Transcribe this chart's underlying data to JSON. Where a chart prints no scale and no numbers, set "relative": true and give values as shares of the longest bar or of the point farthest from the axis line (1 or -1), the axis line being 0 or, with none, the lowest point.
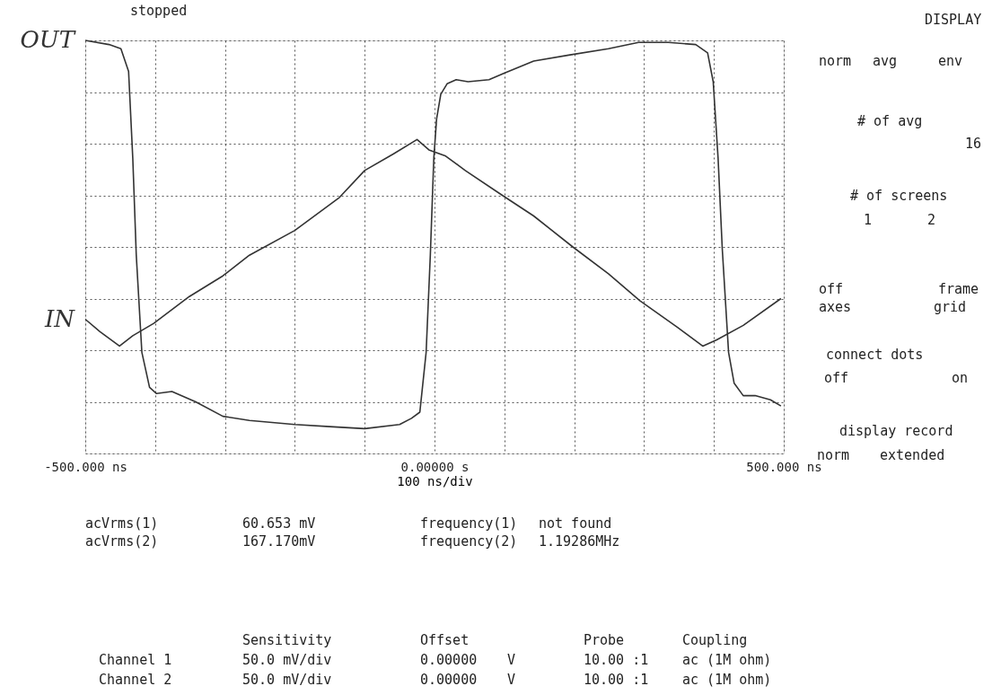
{
  "chart_data": {
    "type": "line",
    "relative": true,
    "xlabel": "100 ns/div",
    "xlim": [
      -500,
      500
    ],
    "xticks": [
      {
        "value": -500,
        "label": "-500.000 ns"
      },
      {
        "value": -400,
        "label": null
      },
      {
        "value": -300,
        "label": null
      },
      {
        "value": -200,
        "label": null
      },
      {
        "value": -100,
        "label": null
      },
      {
        "value": 0,
        "label": "0.00000  s"
      },
      {
        "value": 100,
        "label": null
      },
      {
        "value": 200,
        "label": null
      },
      {
        "value": 300,
        "label": null
      },
      {
        "value": 400,
        "label": null
      },
      {
        "value": 500,
        "label": "500.000 ns"
      }
    ],
    "tick_labels": "x",
    "grid": true,
    "series": [
      {
        "name": "OUT",
        "color": "#333333",
        "x": [
          -500,
          -466,
          -449,
          -438,
          -432,
          -427,
          -419,
          -408,
          -398,
          -376,
          -342,
          -303,
          -265,
          -200,
          -150,
          -100,
          -50,
          -33,
          -21,
          -12,
          -6,
          -1,
          3,
          9,
          18,
          31,
          48,
          78,
          99,
          142,
          194,
          249,
          292,
          335,
          374,
          391,
          399,
          406,
          412,
          421,
          429,
          442,
          459,
          481,
          496
        ],
        "values": [
          1.0,
          0.98,
          0.96,
          0.85,
          0.43,
          -0.04,
          -0.51,
          -0.68,
          -0.71,
          -0.7,
          -0.75,
          -0.82,
          -0.84,
          -0.86,
          -0.87,
          -0.88,
          -0.86,
          -0.83,
          -0.8,
          -0.51,
          -0.04,
          0.43,
          0.62,
          0.74,
          0.79,
          0.81,
          0.8,
          0.81,
          0.84,
          0.9,
          0.93,
          0.96,
          0.99,
          0.99,
          0.98,
          0.94,
          0.8,
          0.43,
          -0.01,
          -0.51,
          -0.66,
          -0.72,
          -0.72,
          -0.74,
          -0.77
        ]
      },
      {
        "name": "IN",
        "color": "#333333",
        "x": [
          -500,
          -479,
          -451,
          -432,
          -402,
          -351,
          -303,
          -265,
          -200,
          -136,
          -100,
          -59,
          -25,
          -8,
          16,
          44,
          97,
          142,
          198,
          249,
          294,
          348,
          384,
          404,
          442,
          496
        ],
        "values": [
          -0.35,
          -0.41,
          -0.48,
          -0.43,
          -0.37,
          -0.24,
          -0.14,
          -0.04,
          0.08,
          0.24,
          0.37,
          0.45,
          0.52,
          0.47,
          0.44,
          0.37,
          0.25,
          0.15,
          0.0,
          -0.13,
          -0.26,
          -0.39,
          -0.48,
          -0.45,
          -0.38,
          -0.25
        ]
      }
    ],
    "annotations": [
      "stopped",
      "DISPLAY",
      "norm",
      "avg",
      "env",
      "# of avg",
      "16",
      "# of screens",
      "1",
      "2",
      "off",
      "frame",
      "axes",
      "grid",
      "connect dots",
      "off",
      "on",
      "display record",
      "norm",
      "extended",
      "acVrms(1)",
      "60.653 mV",
      "frequency(1)",
      "not found",
      "acVrms(2)",
      "167.170mV",
      "frequency(2)",
      "1.19286MHz",
      "Sensitivity",
      "Offset",
      "Probe",
      "Coupling",
      "Channel 1",
      "50.0 mV/div",
      "0.00000",
      "V",
      "10.00 :1",
      "ac (1M ohm)",
      "Channel 2",
      "50.0 mV/div",
      "0.00000",
      "V",
      "10.00 :1",
      "ac (1M ohm)"
    ]
  }
}
